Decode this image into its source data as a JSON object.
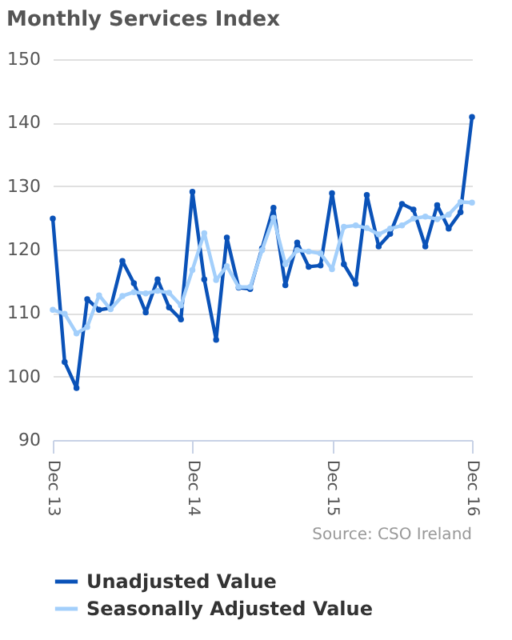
{
  "chart_data": {
    "type": "line",
    "title": "Monthly Services Index",
    "x": [
      "2013-12",
      "2014-01",
      "2014-02",
      "2014-03",
      "2014-04",
      "2014-05",
      "2014-06",
      "2014-07",
      "2014-08",
      "2014-09",
      "2014-10",
      "2014-11",
      "2014-12",
      "2015-01",
      "2015-02",
      "2015-03",
      "2015-04",
      "2015-05",
      "2015-06",
      "2015-07",
      "2015-08",
      "2015-09",
      "2015-10",
      "2015-11",
      "2015-12",
      "2016-01",
      "2016-02",
      "2016-03",
      "2016-04",
      "2016-05",
      "2016-06",
      "2016-07",
      "2016-08",
      "2016-09",
      "2016-10",
      "2016-11",
      "2016-12"
    ],
    "series": [
      {
        "name": "Unadjusted Value",
        "color": "#0a52b8",
        "values": [
          124.9,
          102.3,
          98.2,
          112.2,
          110.5,
          110.8,
          118.2,
          114.7,
          110.1,
          115.3,
          110.9,
          109,
          129.1,
          115.3,
          105.8,
          121.9,
          114,
          113.8,
          120.2,
          126.6,
          114.4,
          121.1,
          117.3,
          117.5,
          128.9,
          117.7,
          114.6,
          128.6,
          120.5,
          122.5,
          127.2,
          126.3,
          120.5,
          127,
          123.3,
          125.9,
          140.9
        ]
      },
      {
        "name": "Seasonally Adjusted Value",
        "color": "#a3cffb",
        "values": [
          110.5,
          109.9,
          106.8,
          107.8,
          112.8,
          110.6,
          112.7,
          113.3,
          113.1,
          113.5,
          113.2,
          111.2,
          116.8,
          122.6,
          115.2,
          117.4,
          114.1,
          114.1,
          119.9,
          125,
          117.7,
          119.9,
          119.7,
          119.4,
          116.9,
          123.6,
          123.8,
          123.4,
          122.4,
          123.3,
          123.8,
          124.9,
          125.2,
          124.8,
          125.5,
          127.5,
          127.4
        ]
      }
    ],
    "xlim": [
      "2013-12",
      "2016-12"
    ],
    "xticks": [
      {
        "value": "2013-12",
        "label": "Dec 13"
      },
      {
        "value": "2014-12",
        "label": "Dec 14"
      },
      {
        "value": "2015-12",
        "label": "Dec 15"
      },
      {
        "value": "2016-12",
        "label": "Dec 16"
      }
    ],
    "ylim": [
      90,
      150
    ],
    "yticks": [
      90,
      100,
      110,
      120,
      130,
      140,
      150
    ],
    "grid": "y",
    "legend": "bottom",
    "marker": "circle",
    "line_style": "solid",
    "annotations": [
      "Source: CSO Ireland"
    ]
  }
}
